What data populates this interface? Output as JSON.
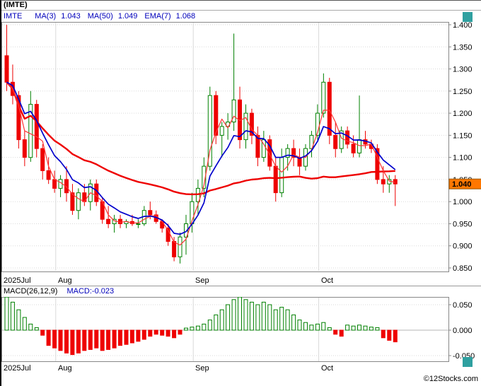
{
  "header": {
    "title": "(IMTE)"
  },
  "legend": {
    "symbol": "IMTE",
    "items": [
      {
        "name": "MA(3)",
        "value": "1.043"
      },
      {
        "name": "MA(50)",
        "value": "1.049"
      },
      {
        "name": "EMA(7)",
        "value": "1.068"
      }
    ]
  },
  "macd_panel": {
    "title": "MACD(26,12,9)",
    "value_label": "MACD:-0.023"
  },
  "footer": {
    "credit": "©12Stocks.com"
  },
  "colors": {
    "accent_blue": "#0000bb",
    "bull": "#008000",
    "bear": "#ee0000",
    "ma3": "#ff3333",
    "ma50": "#ee0000",
    "ema7": "#0000cc",
    "grid": "#d9d9d9",
    "price_tag_bg": "#ff7700",
    "teal": "#2fa0a0"
  },
  "chart_data": [
    {
      "type": "candlestick",
      "symbol": "IMTE",
      "title": "(IMTE)",
      "y_axis": {
        "ticks": [
          "1.400",
          "1.350",
          "1.300",
          "1.250",
          "1.200",
          "1.150",
          "1.100",
          "1.050",
          "1.000",
          "0.950",
          "0.900",
          "0.850"
        ],
        "range": [
          0.85,
          1.4
        ]
      },
      "x_axis": {
        "months": [
          {
            "label": "2025Jul",
            "index": 0
          },
          {
            "label": "Aug",
            "index": 9
          },
          {
            "label": "Sep",
            "index": 32
          },
          {
            "label": "Oct",
            "index": 53
          }
        ]
      },
      "last_price": 1.04,
      "last_price_label": "1.040",
      "overlays": [
        {
          "name": "MA(3)",
          "type": "sma",
          "period": 3,
          "value": 1.043,
          "color": "#ff3333",
          "width": 1.2
        },
        {
          "name": "MA(50)",
          "type": "sma",
          "period": 50,
          "value": 1.049,
          "color": "#ee0000",
          "width": 2.4
        },
        {
          "name": "EMA(7)",
          "type": "ema",
          "period": 7,
          "value": 1.068,
          "color": "#0000cc",
          "width": 1.7
        }
      ],
      "candles": [
        [
          1.33,
          1.4,
          1.25,
          1.27
        ],
        [
          1.27,
          1.31,
          1.22,
          1.24
        ],
        [
          1.24,
          1.25,
          1.12,
          1.14
        ],
        [
          1.14,
          1.16,
          1.08,
          1.1
        ],
        [
          1.1,
          1.25,
          1.09,
          1.22
        ],
        [
          1.22,
          1.23,
          1.1,
          1.12
        ],
        [
          1.12,
          1.13,
          1.05,
          1.07
        ],
        [
          1.07,
          1.1,
          1.04,
          1.05
        ],
        [
          1.05,
          1.07,
          1.02,
          1.03
        ],
        [
          1.03,
          1.06,
          1.01,
          1.05
        ],
        [
          1.05,
          1.08,
          1.0,
          1.02
        ],
        [
          1.02,
          1.04,
          0.97,
          0.98
        ],
        [
          0.98,
          1.03,
          0.96,
          1.02
        ],
        [
          1.02,
          1.04,
          0.99,
          1.0
        ],
        [
          1.0,
          1.05,
          0.98,
          1.04
        ],
        [
          1.04,
          1.05,
          0.99,
          1.0
        ],
        [
          1.0,
          1.01,
          0.95,
          0.96
        ],
        [
          0.96,
          0.99,
          0.94,
          0.95
        ],
        [
          0.95,
          0.97,
          0.93,
          0.96
        ],
        [
          0.96,
          0.97,
          0.94,
          0.95
        ],
        [
          0.95,
          0.96,
          0.94,
          0.955
        ],
        [
          0.955,
          0.97,
          0.945,
          0.95
        ],
        [
          0.95,
          0.96,
          0.94,
          0.95
        ],
        [
          0.95,
          0.99,
          0.945,
          0.98
        ],
        [
          0.98,
          1.0,
          0.96,
          0.97
        ],
        [
          0.97,
          0.98,
          0.95,
          0.955
        ],
        [
          0.955,
          0.96,
          0.93,
          0.94
        ],
        [
          0.94,
          0.95,
          0.9,
          0.91
        ],
        [
          0.91,
          0.92,
          0.865,
          0.875
        ],
        [
          0.875,
          0.93,
          0.86,
          0.92
        ],
        [
          0.92,
          0.97,
          0.88,
          0.95
        ],
        [
          0.95,
          1.02,
          0.93,
          1.0
        ],
        [
          1.0,
          1.05,
          0.97,
          1.03
        ],
        [
          1.03,
          1.1,
          1.01,
          1.08
        ],
        [
          1.08,
          1.26,
          1.07,
          1.24
        ],
        [
          1.24,
          1.25,
          1.13,
          1.15
        ],
        [
          1.15,
          1.18,
          1.1,
          1.17
        ],
        [
          1.17,
          1.2,
          1.14,
          1.18
        ],
        [
          1.18,
          1.38,
          1.16,
          1.23
        ],
        [
          1.23,
          1.26,
          1.12,
          1.14
        ],
        [
          1.14,
          1.22,
          1.12,
          1.2
        ],
        [
          1.2,
          1.21,
          1.13,
          1.15
        ],
        [
          1.15,
          1.17,
          1.08,
          1.1
        ],
        [
          1.1,
          1.16,
          1.09,
          1.14
        ],
        [
          1.14,
          1.15,
          1.07,
          1.08
        ],
        [
          1.08,
          1.1,
          1.0,
          1.02
        ],
        [
          1.02,
          1.12,
          1.01,
          1.1
        ],
        [
          1.1,
          1.13,
          1.07,
          1.12
        ],
        [
          1.12,
          1.14,
          1.08,
          1.1
        ],
        [
          1.1,
          1.12,
          1.06,
          1.08
        ],
        [
          1.08,
          1.13,
          1.07,
          1.12
        ],
        [
          1.12,
          1.16,
          1.1,
          1.15
        ],
        [
          1.15,
          1.22,
          1.14,
          1.2
        ],
        [
          1.2,
          1.29,
          1.19,
          1.27
        ],
        [
          1.27,
          1.28,
          1.13,
          1.15
        ],
        [
          1.15,
          1.18,
          1.1,
          1.12
        ],
        [
          1.12,
          1.17,
          1.11,
          1.16
        ],
        [
          1.16,
          1.17,
          1.12,
          1.13
        ],
        [
          1.13,
          1.15,
          1.1,
          1.11
        ],
        [
          1.11,
          1.24,
          1.1,
          1.14
        ],
        [
          1.14,
          1.16,
          1.12,
          1.13
        ],
        [
          1.13,
          1.14,
          1.11,
          1.12
        ],
        [
          1.12,
          1.13,
          1.04,
          1.05
        ],
        [
          1.05,
          1.08,
          1.02,
          1.04
        ],
        [
          1.04,
          1.06,
          1.02,
          1.05
        ],
        [
          1.05,
          1.06,
          0.99,
          1.04
        ]
      ]
    },
    {
      "type": "bar",
      "name": "MACD(26,12,9)",
      "last_value": -0.023,
      "y_ticks": [
        "0.050",
        "0.000",
        "-0.050"
      ],
      "values": [
        0.065,
        0.055,
        0.04,
        0.025,
        0.012,
        0.005,
        -0.01,
        -0.03,
        -0.035,
        -0.04,
        -0.045,
        -0.048,
        -0.045,
        -0.04,
        -0.038,
        -0.035,
        -0.04,
        -0.038,
        -0.035,
        -0.03,
        -0.028,
        -0.025,
        -0.022,
        -0.018,
        -0.012,
        -0.008,
        -0.01,
        -0.012,
        -0.015,
        -0.008,
        0.004,
        0.006,
        0.008,
        0.012,
        0.02,
        0.03,
        0.04,
        0.05,
        0.06,
        0.065,
        0.06,
        0.055,
        0.05,
        0.055,
        0.05,
        0.04,
        0.045,
        0.04,
        0.03,
        0.02,
        0.015,
        0.01,
        0.012,
        0.015,
        0.005,
        -0.008,
        -0.012,
        0.01,
        0.008,
        0.01,
        0.008,
        0.006,
        0.005,
        -0.015,
        -0.02,
        -0.023
      ]
    }
  ]
}
